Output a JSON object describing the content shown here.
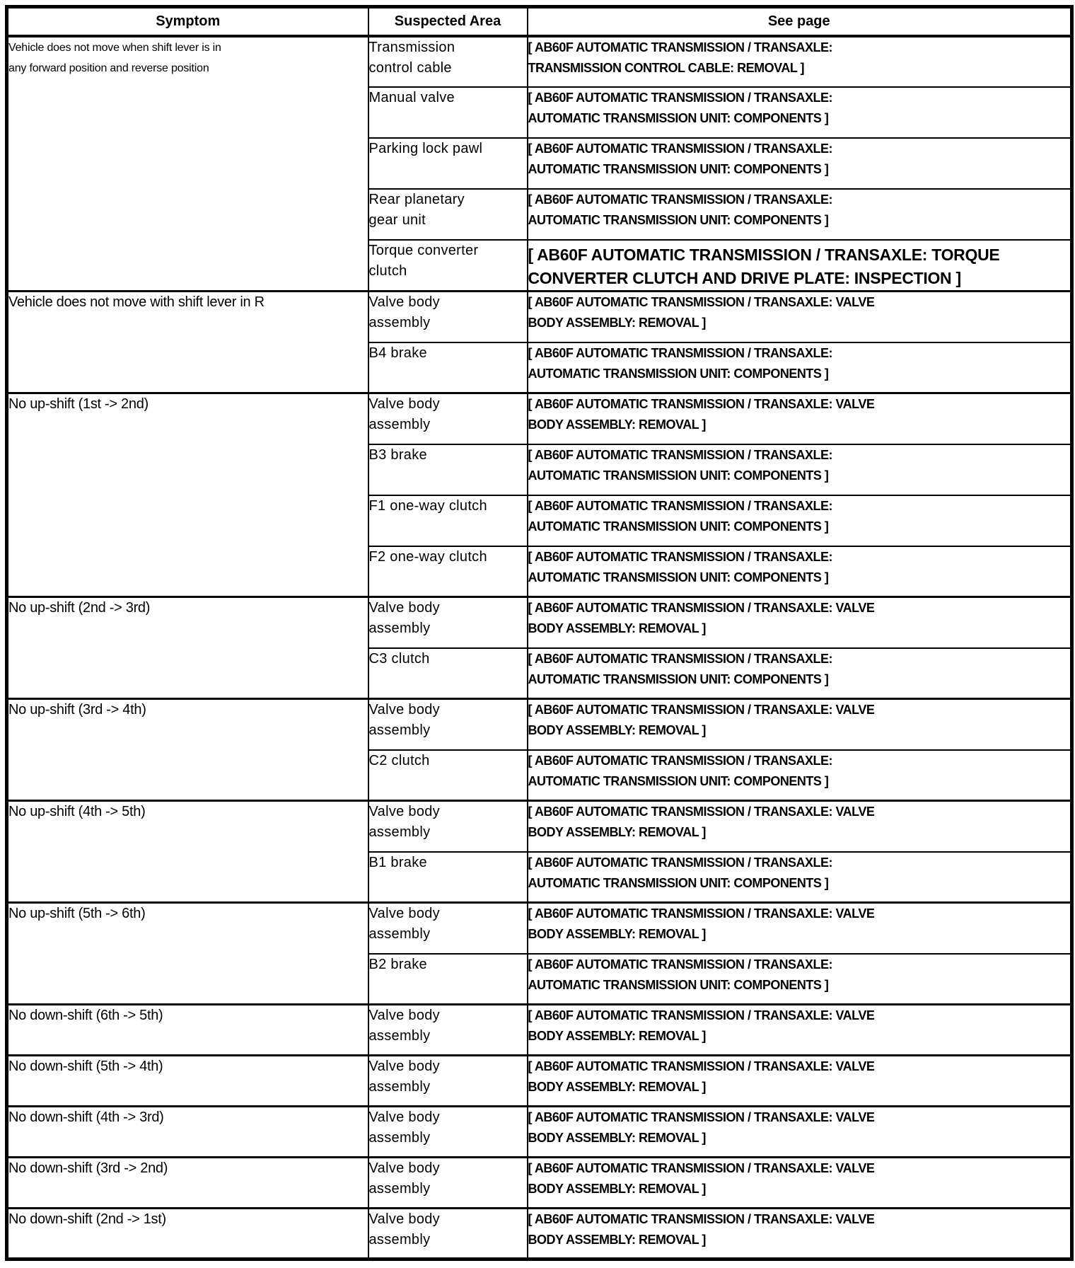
{
  "page": {
    "background_color": "#ffffff",
    "text_color": "#000000",
    "border_color": "#000000"
  },
  "table": {
    "headers": [
      "Symptom",
      "Suspected Area",
      "See page"
    ],
    "groups": [
      {
        "symptom": [
          "Vehicle does not move when shift lever is in",
          "any forward position and reverse position"
        ],
        "symptom_size": "small",
        "causes": [
          {
            "area": [
              "Transmission",
              "control cable"
            ],
            "see_page": [
              "[ AB60F AUTOMATIC TRANSMISSION / TRANSAXLE:",
              "TRANSMISSION CONTROL CABLE: REMOVAL ]"
            ],
            "emphasis": "normal"
          },
          {
            "area": [
              "Manual valve"
            ],
            "see_page": [
              "[ AB60F AUTOMATIC TRANSMISSION / TRANSAXLE:",
              "AUTOMATIC TRANSMISSION UNIT: COMPONENTS ]"
            ],
            "emphasis": "normal"
          },
          {
            "area": [
              "Parking lock pawl"
            ],
            "see_page": [
              "[ AB60F AUTOMATIC TRANSMISSION / TRANSAXLE:",
              "AUTOMATIC TRANSMISSION UNIT: COMPONENTS ]"
            ],
            "emphasis": "normal"
          },
          {
            "area": [
              "Rear planetary",
              "gear unit"
            ],
            "see_page": [
              "[ AB60F AUTOMATIC TRANSMISSION / TRANSAXLE:",
              "AUTOMATIC TRANSMISSION UNIT: COMPONENTS ]"
            ],
            "emphasis": "normal"
          },
          {
            "area": [
              "Torque converter",
              "clutch"
            ],
            "see_page": [
              "[ AB60F AUTOMATIC TRANSMISSION / TRANSAXLE: TORQUE",
              "CONVERTER CLUTCH AND DRIVE PLATE: INSPECTION ]"
            ],
            "emphasis": "large"
          }
        ]
      },
      {
        "symptom": [
          "Vehicle does not move with shift lever in R"
        ],
        "symptom_size": "normal",
        "causes": [
          {
            "area": [
              "Valve body",
              "assembly"
            ],
            "see_page": [
              "[ AB60F AUTOMATIC TRANSMISSION / TRANSAXLE: VALVE",
              "BODY ASSEMBLY: REMOVAL ]"
            ],
            "emphasis": "normal"
          },
          {
            "area": [
              "B4 brake"
            ],
            "see_page": [
              "[ AB60F AUTOMATIC TRANSMISSION / TRANSAXLE:",
              "AUTOMATIC TRANSMISSION UNIT: COMPONENTS ]"
            ],
            "emphasis": "normal"
          }
        ]
      },
      {
        "symptom": [
          "No up-shift (1st -> 2nd)"
        ],
        "symptom_size": "normal",
        "causes": [
          {
            "area": [
              "Valve body",
              "assembly"
            ],
            "see_page": [
              "[ AB60F AUTOMATIC TRANSMISSION / TRANSAXLE: VALVE",
              "BODY ASSEMBLY: REMOVAL ]"
            ],
            "emphasis": "normal"
          },
          {
            "area": [
              "B3 brake"
            ],
            "see_page": [
              "[ AB60F AUTOMATIC TRANSMISSION / TRANSAXLE:",
              "AUTOMATIC TRANSMISSION UNIT: COMPONENTS ]"
            ],
            "emphasis": "normal"
          },
          {
            "area": [
              "F1 one-way clutch"
            ],
            "see_page": [
              "[ AB60F AUTOMATIC TRANSMISSION / TRANSAXLE:",
              "AUTOMATIC TRANSMISSION UNIT: COMPONENTS ]"
            ],
            "emphasis": "normal"
          },
          {
            "area": [
              "F2 one-way clutch"
            ],
            "see_page": [
              "[ AB60F AUTOMATIC TRANSMISSION / TRANSAXLE:",
              "AUTOMATIC TRANSMISSION UNIT: COMPONENTS ]"
            ],
            "emphasis": "normal"
          }
        ]
      },
      {
        "symptom": [
          "No up-shift (2nd -> 3rd)"
        ],
        "symptom_size": "normal",
        "causes": [
          {
            "area": [
              "Valve body",
              "assembly"
            ],
            "see_page": [
              "[ AB60F AUTOMATIC TRANSMISSION / TRANSAXLE: VALVE",
              "BODY ASSEMBLY: REMOVAL ]"
            ],
            "emphasis": "normal"
          },
          {
            "area": [
              "C3 clutch"
            ],
            "see_page": [
              "[ AB60F AUTOMATIC TRANSMISSION / TRANSAXLE:",
              "AUTOMATIC TRANSMISSION UNIT: COMPONENTS ]"
            ],
            "emphasis": "normal"
          }
        ]
      },
      {
        "symptom": [
          "No up-shift (3rd -> 4th)"
        ],
        "symptom_size": "normal",
        "causes": [
          {
            "area": [
              "Valve body",
              "assembly"
            ],
            "see_page": [
              "[ AB60F AUTOMATIC TRANSMISSION / TRANSAXLE: VALVE",
              "BODY ASSEMBLY: REMOVAL ]"
            ],
            "emphasis": "normal"
          },
          {
            "area": [
              "C2 clutch"
            ],
            "see_page": [
              "[ AB60F AUTOMATIC TRANSMISSION / TRANSAXLE:",
              "AUTOMATIC TRANSMISSION UNIT: COMPONENTS ]"
            ],
            "emphasis": "normal"
          }
        ]
      },
      {
        "symptom": [
          "No up-shift (4th -> 5th)"
        ],
        "symptom_size": "normal",
        "causes": [
          {
            "area": [
              "Valve body",
              "assembly"
            ],
            "see_page": [
              "[ AB60F AUTOMATIC TRANSMISSION / TRANSAXLE: VALVE",
              "BODY ASSEMBLY: REMOVAL ]"
            ],
            "emphasis": "normal"
          },
          {
            "area": [
              "B1 brake"
            ],
            "see_page": [
              "[ AB60F AUTOMATIC TRANSMISSION / TRANSAXLE:",
              "AUTOMATIC TRANSMISSION UNIT: COMPONENTS ]"
            ],
            "emphasis": "normal"
          }
        ]
      },
      {
        "symptom": [
          "No up-shift (5th -> 6th)"
        ],
        "symptom_size": "normal",
        "causes": [
          {
            "area": [
              "Valve body",
              "assembly"
            ],
            "see_page": [
              "[ AB60F AUTOMATIC TRANSMISSION / TRANSAXLE: VALVE",
              "BODY ASSEMBLY: REMOVAL ]"
            ],
            "emphasis": "normal"
          },
          {
            "area": [
              "B2 brake"
            ],
            "see_page": [
              "[ AB60F AUTOMATIC TRANSMISSION / TRANSAXLE:",
              "AUTOMATIC TRANSMISSION UNIT: COMPONENTS ]"
            ],
            "emphasis": "normal"
          }
        ]
      },
      {
        "symptom": [
          "No down-shift (6th -> 5th)"
        ],
        "symptom_size": "normal",
        "causes": [
          {
            "area": [
              "Valve body",
              "assembly"
            ],
            "see_page": [
              "[ AB60F AUTOMATIC TRANSMISSION / TRANSAXLE: VALVE",
              "BODY ASSEMBLY: REMOVAL ]"
            ],
            "emphasis": "normal"
          }
        ]
      },
      {
        "symptom": [
          "No down-shift (5th -> 4th)"
        ],
        "symptom_size": "normal",
        "causes": [
          {
            "area": [
              "Valve body",
              "assembly"
            ],
            "see_page": [
              "[ AB60F AUTOMATIC TRANSMISSION / TRANSAXLE: VALVE",
              "BODY ASSEMBLY: REMOVAL ]"
            ],
            "emphasis": "normal"
          }
        ]
      },
      {
        "symptom": [
          "No down-shift (4th -> 3rd)"
        ],
        "symptom_size": "normal",
        "causes": [
          {
            "area": [
              "Valve body",
              "assembly"
            ],
            "see_page": [
              "[ AB60F AUTOMATIC TRANSMISSION / TRANSAXLE: VALVE",
              "BODY ASSEMBLY: REMOVAL ]"
            ],
            "emphasis": "normal"
          }
        ]
      },
      {
        "symptom": [
          "No down-shift (3rd -> 2nd)"
        ],
        "symptom_size": "normal",
        "causes": [
          {
            "area": [
              "Valve body",
              "assembly"
            ],
            "see_page": [
              "[ AB60F AUTOMATIC TRANSMISSION / TRANSAXLE: VALVE",
              "BODY ASSEMBLY: REMOVAL ]"
            ],
            "emphasis": "normal"
          }
        ]
      },
      {
        "symptom": [
          "No down-shift (2nd -> 1st)"
        ],
        "symptom_size": "normal",
        "causes": [
          {
            "area": [
              "Valve body",
              "assembly"
            ],
            "see_page": [
              "[ AB60F AUTOMATIC TRANSMISSION / TRANSAXLE: VALVE",
              "BODY ASSEMBLY: REMOVAL ]"
            ],
            "emphasis": "normal"
          }
        ]
      }
    ]
  }
}
